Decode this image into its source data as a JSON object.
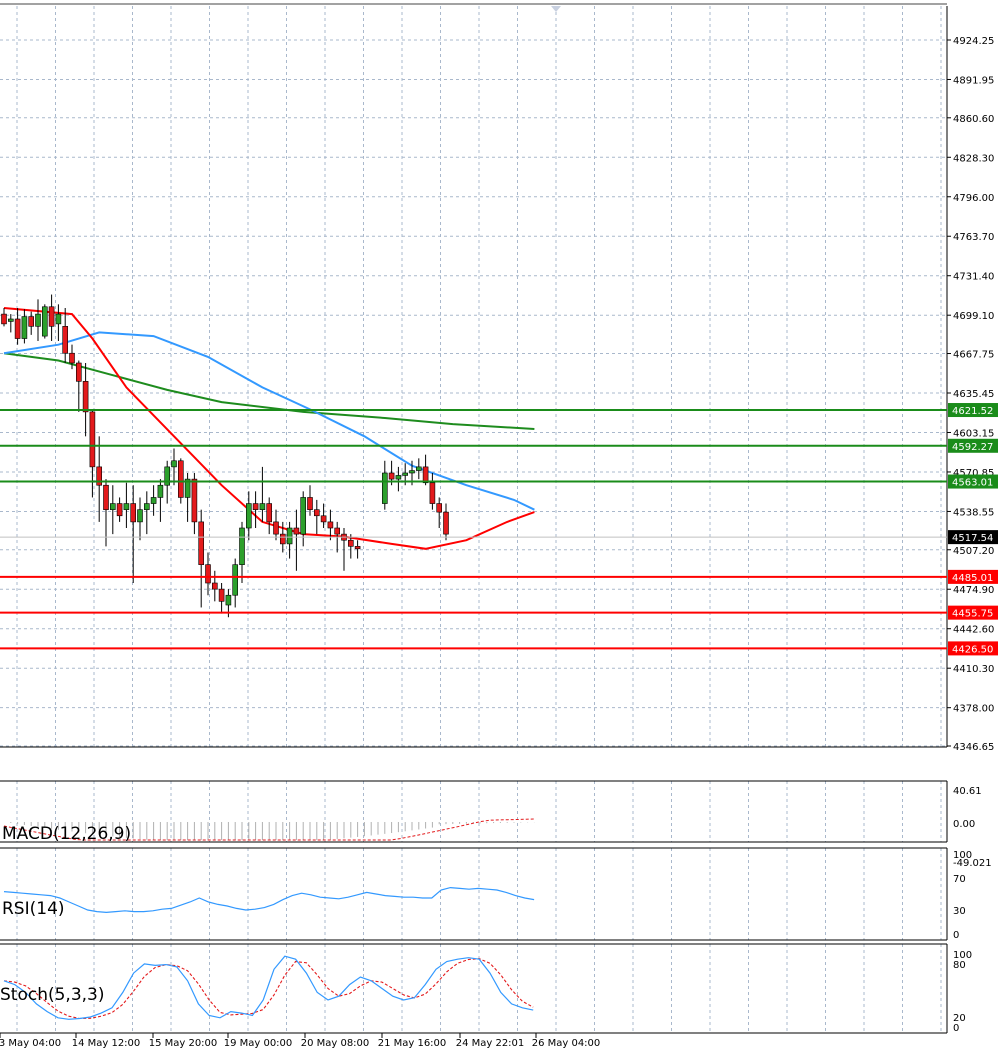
{
  "colors": {
    "background": "#ffffff",
    "grid": "#a9b8cc",
    "frame": "#000000",
    "bull_candle": "#2ca02c",
    "bear_candle": "#e31a1c",
    "ma_fast": "#ff0000",
    "ma_mid": "#3399ff",
    "ma_slow": "#1e8c1e",
    "support": "#ff0000",
    "resistance": "#1a8c1a",
    "macd_hist": "#b0b0b0",
    "macd_signal": "#e31a1c",
    "rsi": "#3399ff",
    "stoch_main": "#3399ff",
    "stoch_signal": "#e31a1c"
  },
  "chart_data": {
    "type": "candlestick",
    "price_axis": {
      "ticks": [
        "4924.25",
        "4891.95",
        "4860.60",
        "4828.30",
        "4796.00",
        "4763.70",
        "4731.40",
        "4699.10",
        "4667.75",
        "4635.45",
        "4603.15",
        "4570.85",
        "4538.55",
        "4507.20",
        "4474.90",
        "4442.60",
        "4410.30",
        "4378.00",
        "4346.65"
      ],
      "ylim": [
        4346.65,
        4937
      ]
    },
    "time_axis": {
      "labels": [
        "3 May 04:00",
        "14 May 12:00",
        "15 May 20:00",
        "19 May 00:00",
        "20 May 08:00",
        "21 May 16:00",
        "24 May 22:01",
        "26 May 04:00"
      ]
    },
    "horizontal_levels": [
      {
        "value": 4621.52,
        "label": "4621.52",
        "kind": "resistance"
      },
      {
        "value": 4592.27,
        "label": "4592.27",
        "kind": "resistance"
      },
      {
        "value": 4563.01,
        "label": "4563.01",
        "kind": "resistance"
      },
      {
        "value": 4485.01,
        "label": "4485.01",
        "kind": "support"
      },
      {
        "value": 4455.75,
        "label": "4455.75",
        "kind": "support"
      },
      {
        "value": 4426.5,
        "label": "4426.50",
        "kind": "support"
      }
    ],
    "current_price": {
      "value": 4517.54,
      "label": "4517.54"
    },
    "candles": [
      [
        4700,
        4705,
        4690,
        4692
      ],
      [
        4694,
        4700,
        4685,
        4696
      ],
      [
        4696,
        4705,
        4675,
        4680
      ],
      [
        4680,
        4704,
        4676,
        4698
      ],
      [
        4698,
        4702,
        4683,
        4690
      ],
      [
        4690,
        4712,
        4678,
        4700
      ],
      [
        4682,
        4708,
        4680,
        4706
      ],
      [
        4706,
        4716,
        4678,
        4690
      ],
      [
        4692,
        4708,
        4678,
        4700
      ],
      [
        4690,
        4705,
        4660,
        4668
      ],
      [
        4668,
        4675,
        4655,
        4660
      ],
      [
        4660,
        4662,
        4620,
        4645
      ],
      [
        4645,
        4660,
        4600,
        4620
      ],
      [
        4620,
        4622,
        4550,
        4575
      ],
      [
        4575,
        4600,
        4530,
        4560
      ],
      [
        4560,
        4565,
        4510,
        4540
      ],
      [
        4540,
        4560,
        4520,
        4545
      ],
      [
        4545,
        4550,
        4530,
        4535
      ],
      [
        4540,
        4562,
        4525,
        4545
      ],
      [
        4545,
        4560,
        4480,
        4530
      ],
      [
        4530,
        4550,
        4515,
        4540
      ],
      [
        4540,
        4555,
        4520,
        4545
      ],
      [
        4545,
        4560,
        4535,
        4550
      ],
      [
        4550,
        4565,
        4530,
        4560
      ],
      [
        4560,
        4580,
        4545,
        4575
      ],
      [
        4575,
        4590,
        4560,
        4580
      ],
      [
        4580,
        4582,
        4545,
        4550
      ],
      [
        4550,
        4570,
        4530,
        4565
      ],
      [
        4565,
        4570,
        4520,
        4530
      ],
      [
        4530,
        4540,
        4460,
        4495
      ],
      [
        4495,
        4505,
        4470,
        4480
      ],
      [
        4480,
        4490,
        4465,
        4475
      ],
      [
        4475,
        4480,
        4455,
        4465
      ],
      [
        4462,
        4475,
        4452,
        4470
      ],
      [
        4470,
        4500,
        4460,
        4495
      ],
      [
        4495,
        4530,
        4480,
        4525
      ],
      [
        4525,
        4555,
        4515,
        4545
      ],
      [
        4545,
        4555,
        4525,
        4540
      ],
      [
        4540,
        4575,
        4530,
        4545
      ],
      [
        4545,
        4550,
        4520,
        4530
      ],
      [
        4530,
        4540,
        4515,
        4520
      ],
      [
        4520,
        4530,
        4505,
        4512
      ],
      [
        4512,
        4530,
        4500,
        4525
      ],
      [
        4525,
        4540,
        4490,
        4520
      ],
      [
        4520,
        4555,
        4510,
        4550
      ],
      [
        4550,
        4560,
        4535,
        4540
      ],
      [
        4540,
        4548,
        4520,
        4535
      ],
      [
        4535,
        4545,
        4525,
        4530
      ],
      [
        4530,
        4540,
        4515,
        4525
      ],
      [
        4525,
        4530,
        4505,
        4520
      ],
      [
        4520,
        4525,
        4490,
        4515
      ],
      [
        4515,
        4520,
        4500,
        4510
      ],
      [
        4510,
        4515,
        4500,
        4508
      ],
      [
        4545,
        4580,
        4540,
        4570
      ],
      [
        4570,
        4580,
        4560,
        4565
      ],
      [
        4565,
        4575,
        4555,
        4568
      ],
      [
        4568,
        4578,
        4560,
        4570
      ],
      [
        4570,
        4580,
        4560,
        4572
      ],
      [
        4572,
        4582,
        4565,
        4575
      ],
      [
        4575,
        4585,
        4560,
        4562
      ],
      [
        4562,
        4570,
        4540,
        4545
      ],
      [
        4545,
        4550,
        4525,
        4538
      ],
      [
        4538,
        4545,
        4515,
        4520
      ]
    ],
    "ma_fast": [
      [
        0,
        4705
      ],
      [
        10,
        4700
      ],
      [
        13,
        4680
      ],
      [
        18,
        4640
      ],
      [
        25,
        4600
      ],
      [
        32,
        4560
      ],
      [
        38,
        4530
      ],
      [
        44,
        4520
      ],
      [
        50,
        4518
      ],
      [
        57,
        4512
      ],
      [
        62,
        4508
      ],
      [
        68,
        4515
      ],
      [
        74,
        4530
      ],
      [
        78,
        4538
      ]
    ],
    "ma_mid": [
      [
        0,
        4668
      ],
      [
        8,
        4675
      ],
      [
        14,
        4685
      ],
      [
        22,
        4682
      ],
      [
        30,
        4665
      ],
      [
        38,
        4640
      ],
      [
        45,
        4622
      ],
      [
        53,
        4600
      ],
      [
        60,
        4576
      ],
      [
        68,
        4560
      ],
      [
        75,
        4548
      ],
      [
        78,
        4540
      ]
    ],
    "ma_slow": [
      [
        0,
        4668
      ],
      [
        8,
        4662
      ],
      [
        16,
        4650
      ],
      [
        24,
        4638
      ],
      [
        32,
        4628
      ],
      [
        44,
        4620
      ],
      [
        56,
        4615
      ],
      [
        66,
        4610
      ],
      [
        78,
        4606
      ]
    ],
    "indicators": [
      {
        "name": "MACD(12,26,9)",
        "ticks": [
          "40.61",
          "0.00",
          "-49.021"
        ]
      },
      {
        "name": "RSI(14)",
        "ticks": [
          "100",
          "70",
          "30",
          "0"
        ]
      },
      {
        "name": "Stoch(5,3,3)",
        "ticks": [
          "100",
          "80",
          "20",
          "0"
        ]
      }
    ]
  }
}
